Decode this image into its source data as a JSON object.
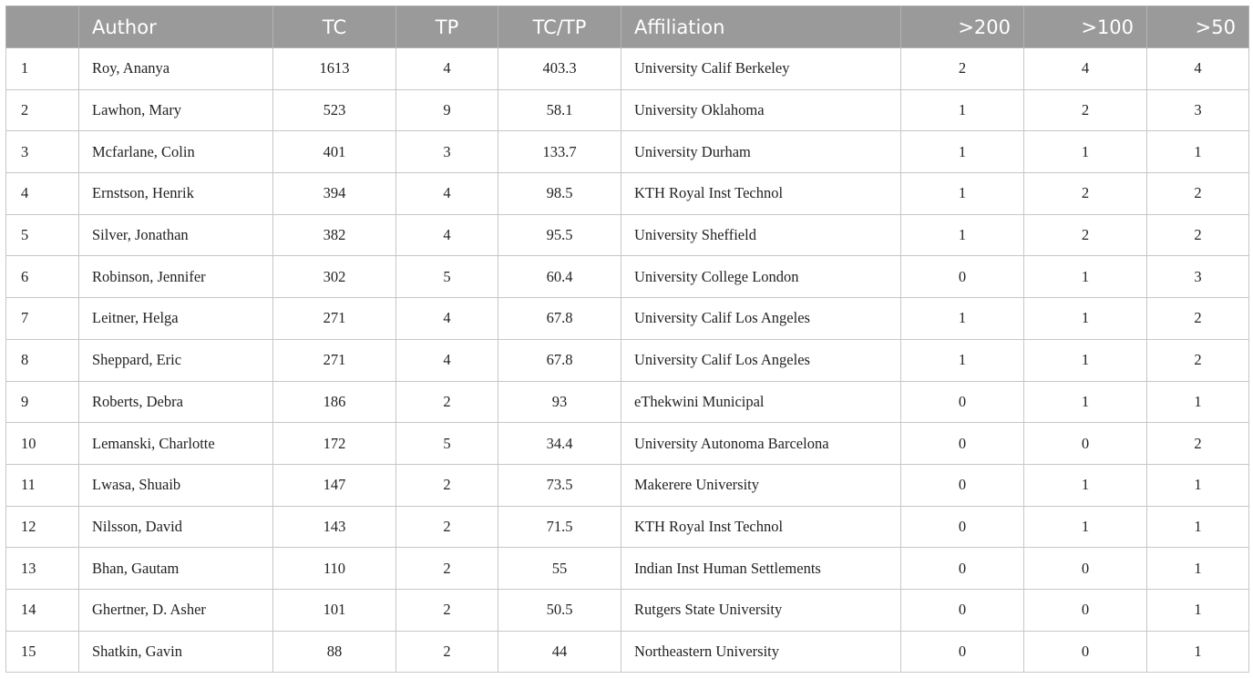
{
  "table": {
    "headers": [
      "",
      "Author",
      "TC",
      "TP",
      "TC/TP",
      "Affiliation",
      ">200",
      ">100",
      ">50"
    ],
    "rows": [
      [
        "1",
        "Roy, Ananya",
        "1613",
        "4",
        "403.3",
        "University Calif Berkeley",
        "2",
        "4",
        "4"
      ],
      [
        "2",
        "Lawhon, Mary",
        "523",
        "9",
        "58.1",
        "University Oklahoma",
        "1",
        "2",
        "3"
      ],
      [
        "3",
        "Mcfarlane, Colin",
        "401",
        "3",
        "133.7",
        "University Durham",
        "1",
        "1",
        "1"
      ],
      [
        "4",
        "Ernstson, Henrik",
        "394",
        "4",
        "98.5",
        "KTH Royal Inst Technol",
        "1",
        "2",
        "2"
      ],
      [
        "5",
        "Silver, Jonathan",
        "382",
        "4",
        "95.5",
        "University Sheffield",
        "1",
        "2",
        "2"
      ],
      [
        "6",
        "Robinson, Jennifer",
        "302",
        "5",
        "60.4",
        "University College London",
        "0",
        "1",
        "3"
      ],
      [
        "7",
        "Leitner, Helga",
        "271",
        "4",
        "67.8",
        "University Calif Los Angeles",
        "1",
        "1",
        "2"
      ],
      [
        "8",
        "Sheppard, Eric",
        "271",
        "4",
        "67.8",
        "University Calif Los Angeles",
        "1",
        "1",
        "2"
      ],
      [
        "9",
        "Roberts, Debra",
        "186",
        "2",
        "93",
        "eThekwini Municipal",
        "0",
        "1",
        "1"
      ],
      [
        "10",
        "Lemanski, Charlotte",
        "172",
        "5",
        "34.4",
        "University Autonoma Barcelona",
        "0",
        "0",
        "2"
      ],
      [
        "11",
        "Lwasa, Shuaib",
        "147",
        "2",
        "73.5",
        "Makerere University",
        "0",
        "1",
        "1"
      ],
      [
        "12",
        "Nilsson, David",
        "143",
        "2",
        "71.5",
        "KTH Royal Inst Technol",
        "0",
        "1",
        "1"
      ],
      [
        "13",
        "Bhan, Gautam",
        "110",
        "2",
        "55",
        "Indian Inst Human Settlements",
        "0",
        "0",
        "1"
      ],
      [
        "14",
        "Ghertner, D. Asher",
        "101",
        "2",
        "50.5",
        "Rutgers State University",
        "0",
        "0",
        "1"
      ],
      [
        "15",
        "Shatkin, Gavin",
        "88",
        "2",
        "44",
        "Northeastern University",
        "0",
        "0",
        "1"
      ]
    ]
  },
  "colors": {
    "header_bg": "#9a9a9a",
    "header_text": "#ffffff",
    "border": "#c7c7c7"
  }
}
